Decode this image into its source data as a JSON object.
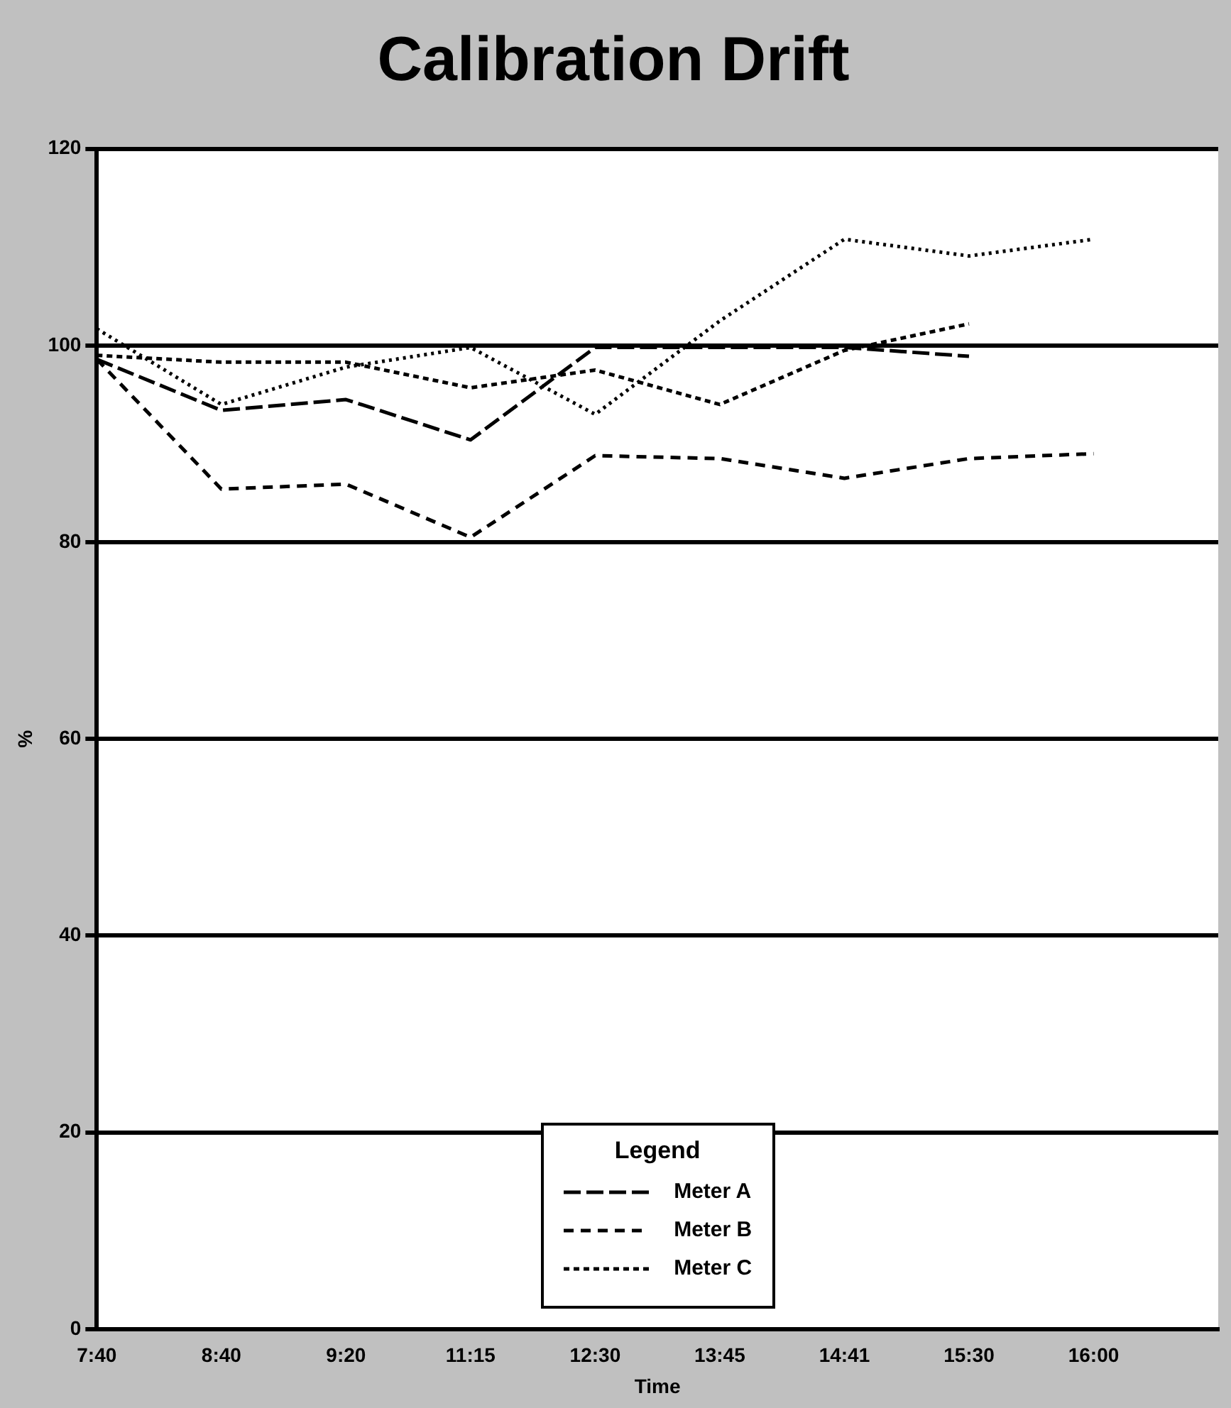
{
  "chart_data": {
    "type": "line",
    "title": "Calibration Drift",
    "xlabel": "Time",
    "ylabel": "%",
    "legend_title": "Legend",
    "legend": "bottom",
    "grid": "y",
    "marker": "none",
    "categories": [
      "7:40",
      "8:40",
      "9:20",
      "11:15",
      "12:30",
      "13:45",
      "14:41",
      "15:30",
      "16:00",
      null
    ],
    "ylim": [
      0,
      120
    ],
    "yticks": [
      0,
      20,
      40,
      60,
      80,
      100,
      120
    ],
    "series": [
      {
        "name": "Meter A",
        "color": "#000000",
        "line_style": "dashed",
        "values": [
          98.6,
          93.4,
          94.5,
          90.4,
          99.8,
          99.8,
          99.8,
          98.9,
          null,
          null
        ]
      },
      {
        "name": "Meter B",
        "color": "#000000",
        "line_style": "dashed",
        "values": [
          98.6,
          85.4,
          85.9,
          80.5,
          88.8,
          88.5,
          86.5,
          88.5,
          89,
          null
        ]
      },
      {
        "name": "Meter C",
        "color": "#000000",
        "line_style": "dotted",
        "values": [
          99,
          98.3,
          98.3,
          95.7,
          97.5,
          94,
          99.5,
          102.2,
          null,
          null
        ]
      },
      {
        "color": "#000000",
        "line_style": "dotted",
        "values": [
          101.7,
          94,
          97.8,
          99.8,
          93,
          102.5,
          110.8,
          109.1,
          110.8,
          null
        ]
      }
    ]
  }
}
